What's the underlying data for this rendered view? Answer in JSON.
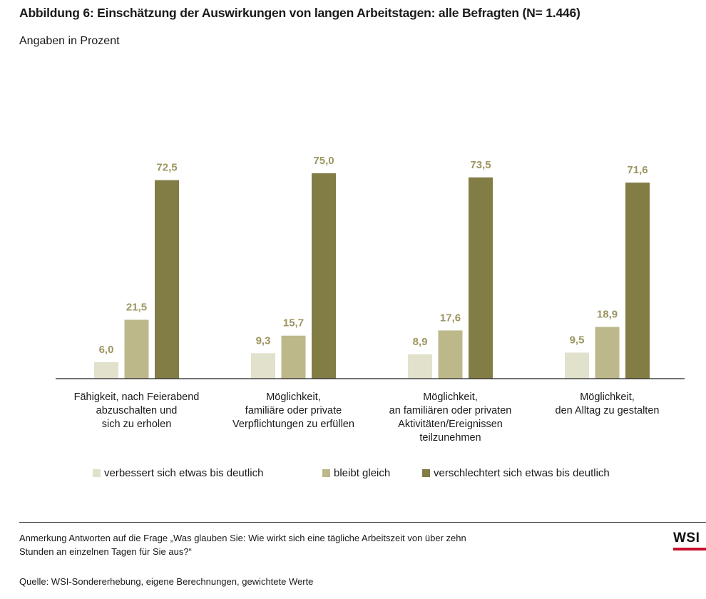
{
  "header": {
    "title": "Abbildung 6: Einschätzung der Auswirkungen von langen Arbeitstagen: alle Befragten (N= 1.446)",
    "subtitle": "Angaben in Prozent"
  },
  "chart_data": {
    "type": "bar",
    "categories": [
      "Fähigkeit, nach Feierabend abzuschalten und sich zu erholen",
      "Möglichkeit, familiäre oder private Verpflichtungen zu erfüllen",
      "Möglichkeit, an familiären oder privaten Aktivitäten/Ereignissen teilzunehmen",
      "Möglichkeit, den Alltag zu gestalten"
    ],
    "category_lines": [
      [
        "Fähigkeit, nach Feierabend",
        "abzuschalten und",
        "sich zu erholen"
      ],
      [
        "Möglichkeit,",
        "familiäre oder private",
        "Verpflichtungen zu erfüllen"
      ],
      [
        "Möglichkeit,",
        "an familiären oder privaten",
        "Aktivitäten/Ereignissen",
        "teilzunehmen"
      ],
      [
        "Möglichkeit,",
        "den Alltag zu gestalten"
      ]
    ],
    "series": [
      {
        "name": "verbessert sich etwas bis deutlich",
        "color": "#e2e1cc",
        "values": [
          6.0,
          9.3,
          8.9,
          9.5
        ],
        "labels": [
          "6,0",
          "9,3",
          "8,9",
          "9,5"
        ]
      },
      {
        "name": "bleibt gleich",
        "color": "#bcb88a",
        "values": [
          21.5,
          15.7,
          17.6,
          18.9
        ],
        "labels": [
          "21,5",
          "15,7",
          "17,6",
          "18,9"
        ]
      },
      {
        "name": "verschlechtert sich etwas bis deutlich",
        "color": "#827c45",
        "values": [
          72.5,
          75.0,
          73.5,
          71.6
        ],
        "labels": [
          "72,5",
          "75,0",
          "73,5",
          "71,6"
        ]
      }
    ],
    "label_color": "#9d9560",
    "ylim": [
      0,
      100
    ],
    "grid": false,
    "legend_position": "bottom"
  },
  "footer": {
    "note_line1": "Anmerkung Antworten auf die Frage „Was glauben Sie: Wie wirkt sich eine tägliche Arbeitszeit von über zehn",
    "note_line2": "Stunden an einzelnen Tagen für Sie aus?“",
    "source": "Quelle: WSI-Sondererhebung, eigene Berechnungen, gewichtete Werte",
    "logo_text": "WSI",
    "logo_accent_color": "#c8102e"
  }
}
